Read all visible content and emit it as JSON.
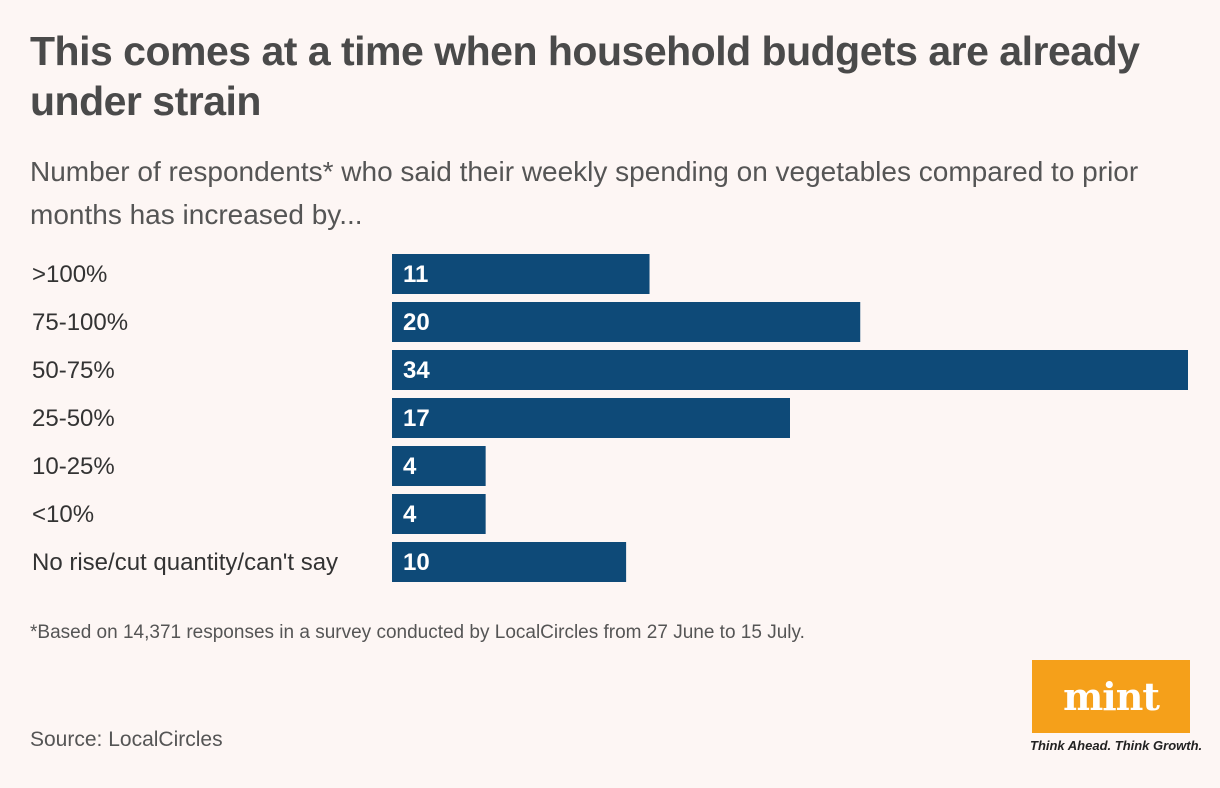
{
  "header": {
    "title": "This comes at a time when household budgets are already under strain",
    "subtitle": "Number of respondents* who said their weekly spending on vegetables compared to prior months has increased by..."
  },
  "chart_data": {
    "type": "bar",
    "orientation": "horizontal",
    "categories": [
      ">100%",
      "75-100%",
      "50-75%",
      "25-50%",
      "10-25%",
      "<10%",
      "No rise/cut quantity/can't say"
    ],
    "values": [
      11,
      20,
      34,
      17,
      4,
      4,
      10
    ],
    "bar_color": "#0e4a78",
    "xlim": [
      0,
      34
    ],
    "grid": false,
    "data_labels": true
  },
  "footnote": "*Based on 14,371 responses in a survey conducted by LocalCircles from 27 June to 15 July.",
  "source": "Source: LocalCircles",
  "brand": {
    "logo_text": "mint",
    "tagline": "Think Ahead. Think Growth.",
    "color": "#f5a01a"
  }
}
